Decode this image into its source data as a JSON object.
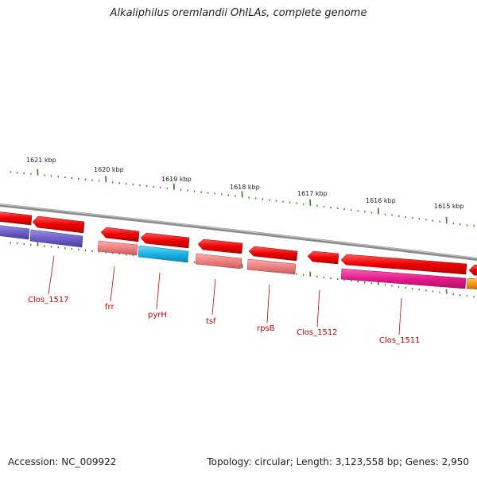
{
  "title": "Alkaliphilus oremlandii OhILAs, complete genome",
  "kbp_labels": [
    "1621 kbp",
    "1620 kbp",
    "1619 kbp",
    "1618 kbp",
    "1617 kbp",
    "1616 kbp",
    "1615 kbp"
  ],
  "gene_labels": [
    "Clos_1517",
    "frr",
    "pyrH",
    "tsf",
    "rpsB",
    "Clos_1512",
    "Clos_1511"
  ],
  "footer": {
    "accession": "Accession: NC_009922",
    "summary": "Topology: circular; Length: 3,123,558 bp; Genes: 2,950"
  },
  "colors": {
    "backbone": "#8a8a8a",
    "gene_red": "#ee0000",
    "tick_green": "#2e7d1e",
    "label_red": "#cc0000",
    "purple": "#6f5fc8",
    "salmon": "#ef8080",
    "cyan": "#19b4e8",
    "magenta": "#e8198c",
    "orange": "#f59a10"
  }
}
